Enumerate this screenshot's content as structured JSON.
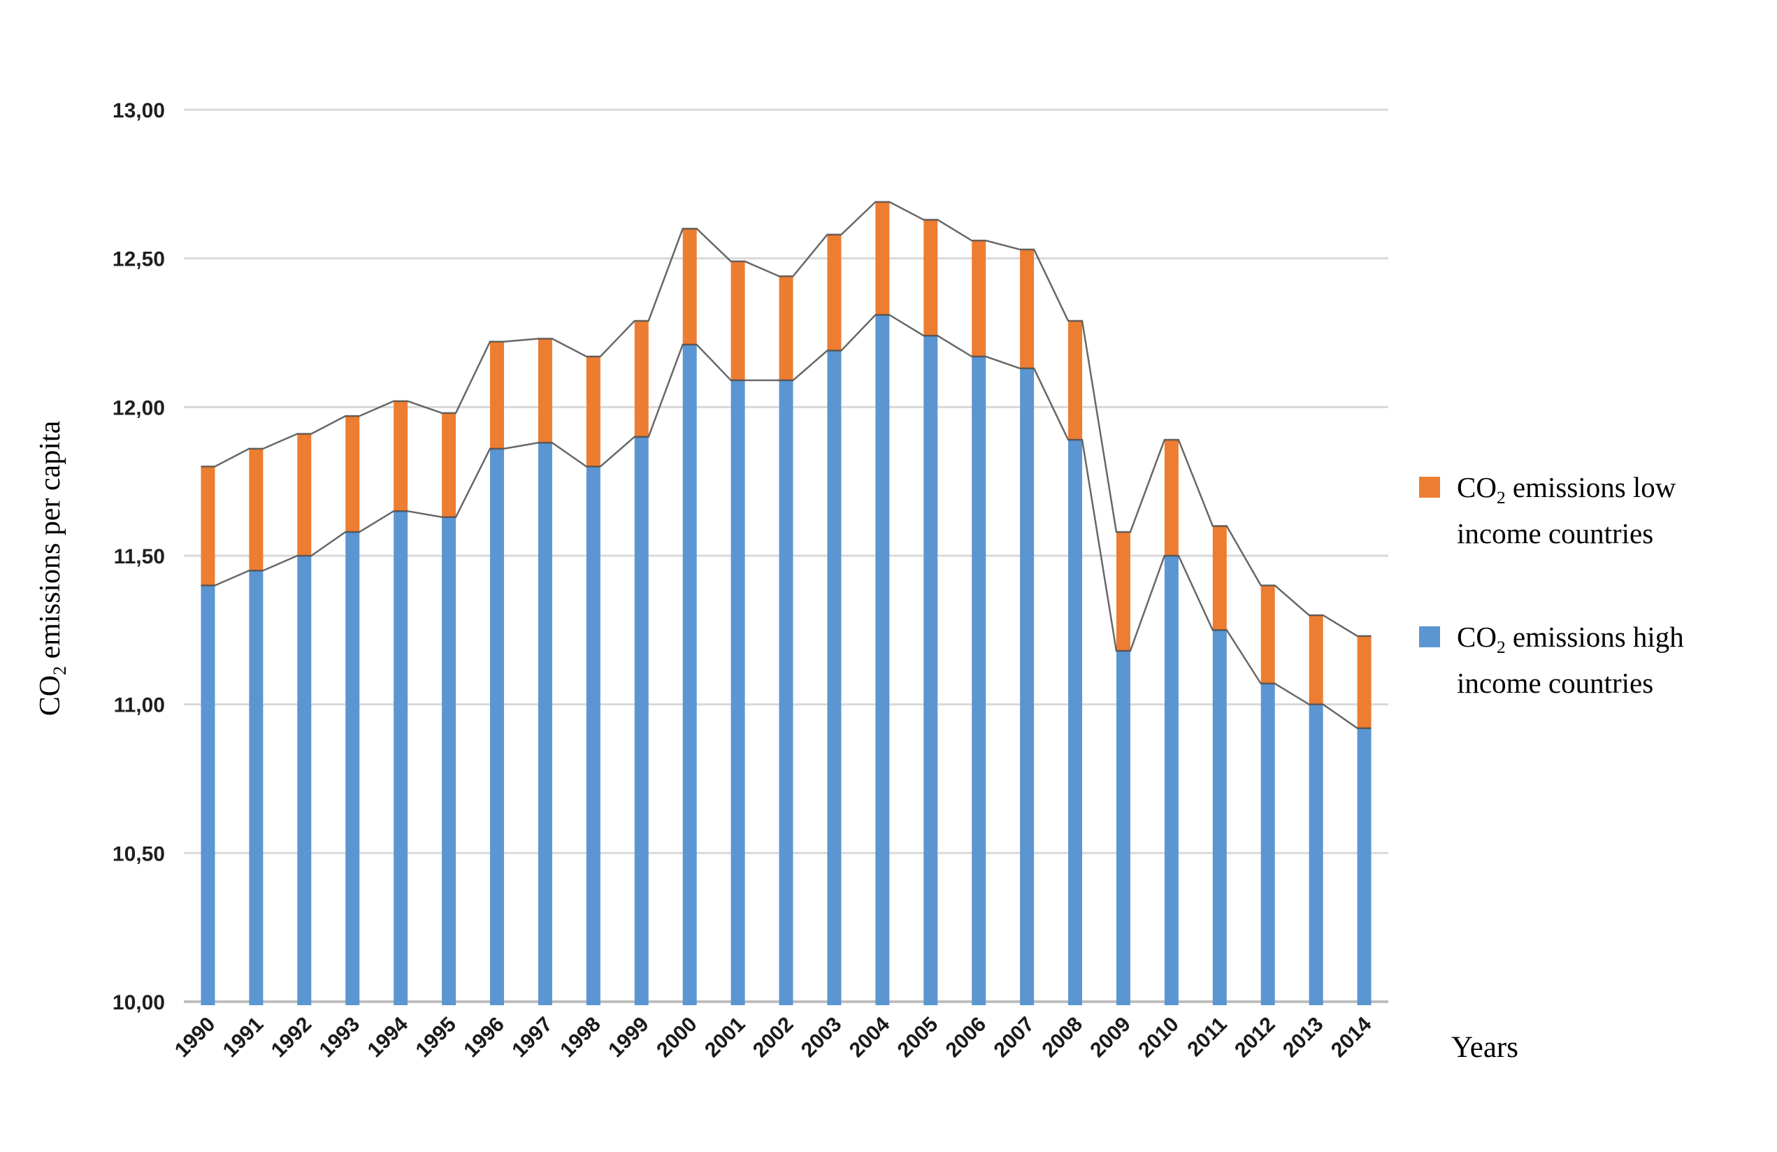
{
  "y_axis": {
    "title_prefix": "CO",
    "title_sub": "2",
    "title_rest": " emissions per capita",
    "tick_labels": [
      "13,00",
      "12,50",
      "12,00",
      "11,50",
      "11,00",
      "10,50",
      "10,00"
    ],
    "tick_values": [
      13,
      12.5,
      12,
      11.5,
      11,
      10.5,
      10
    ]
  },
  "x_axis": {
    "title": "Years",
    "categories": [
      "1990",
      "1991",
      "1992",
      "1993",
      "1994",
      "1995",
      "1996",
      "1997",
      "1998",
      "1999",
      "2000",
      "2001",
      "2002",
      "2003",
      "2004",
      "2005",
      "2006",
      "2007",
      "2008",
      "2009",
      "2010",
      "2011",
      "2012",
      "2013",
      "2014"
    ]
  },
  "legend": {
    "items": [
      {
        "prefix": "CO",
        "sub": "2",
        "line1_rest": " emissions low",
        "line2": "income countries",
        "color": "#ed7d31"
      },
      {
        "prefix": "CO",
        "sub": "2",
        "line1_rest": " emissions high",
        "line2": "income countries",
        "color": "#5b96d2"
      }
    ]
  },
  "colors": {
    "low_income": "#ed7d31",
    "high_income": "#5b96d2",
    "gridline": "#d9d9d9",
    "axis_line": "#bfbfbf",
    "connector_line": "#4d4d4d",
    "tick_text": "#1f1f1f"
  },
  "chart_data": {
    "type": "bar",
    "stacked": true,
    "line_overlay": true,
    "title": "",
    "xlabel": "Years",
    "ylabel": "CO2 emissions per capita",
    "ylim": [
      10,
      13
    ],
    "ytick_step": 0.5,
    "grid": true,
    "legend_position": "right",
    "decimal_style": "comma",
    "categories": [
      1990,
      1991,
      1992,
      1993,
      1994,
      1995,
      1996,
      1997,
      1998,
      1999,
      2000,
      2001,
      2002,
      2003,
      2004,
      2005,
      2006,
      2007,
      2008,
      2009,
      2010,
      2011,
      2012,
      2013,
      2014
    ],
    "series": [
      {
        "name": "CO2 emissions high income countries",
        "color": "#5b96d2",
        "values": [
          11.4,
          11.45,
          11.5,
          11.58,
          11.65,
          11.63,
          11.86,
          11.88,
          11.8,
          11.9,
          12.21,
          12.09,
          12.09,
          12.19,
          12.31,
          12.24,
          12.17,
          12.13,
          11.89,
          11.18,
          11.5,
          11.25,
          11.07,
          11.0,
          10.92
        ]
      },
      {
        "name": "CO2 emissions low income countries",
        "color": "#ed7d31",
        "values": [
          0.4,
          0.41,
          0.41,
          0.39,
          0.37,
          0.35,
          0.36,
          0.35,
          0.37,
          0.39,
          0.39,
          0.4,
          0.35,
          0.39,
          0.38,
          0.39,
          0.39,
          0.4,
          0.4,
          0.4,
          0.39,
          0.35,
          0.33,
          0.3,
          0.31
        ]
      }
    ],
    "stack_totals": [
      11.8,
      11.86,
      11.91,
      11.97,
      12.02,
      11.98,
      12.22,
      12.23,
      12.17,
      12.29,
      12.6,
      12.49,
      12.44,
      12.58,
      12.69,
      12.63,
      12.56,
      12.53,
      12.29,
      11.58,
      11.89,
      11.6,
      11.4,
      11.3,
      11.23
    ]
  }
}
